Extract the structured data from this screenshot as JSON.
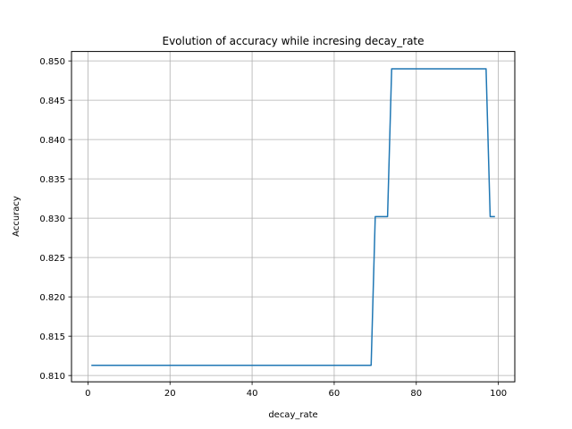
{
  "chart_data": {
    "type": "line",
    "title": "Evolution of accuracy while incresing decay_rate",
    "xlabel": "decay_rate",
    "ylabel": "Accuracy",
    "xlim": [
      -4,
      104
    ],
    "ylim": [
      0.8092,
      0.8512
    ],
    "xticks": [
      0,
      20,
      40,
      60,
      80,
      100
    ],
    "xtick_labels": [
      "0",
      "20",
      "40",
      "60",
      "80",
      "100"
    ],
    "yticks": [
      0.81,
      0.815,
      0.82,
      0.825,
      0.83,
      0.835,
      0.84,
      0.845,
      0.85
    ],
    "ytick_labels": [
      "0.810",
      "0.815",
      "0.820",
      "0.825",
      "0.830",
      "0.835",
      "0.840",
      "0.845",
      "0.850"
    ],
    "grid": true,
    "series_color": "#1f77b4",
    "series": [
      {
        "x": [
          1,
          69,
          70,
          73,
          74,
          97,
          98,
          99
        ],
        "y": [
          0.8113,
          0.8113,
          0.8302,
          0.8302,
          0.849,
          0.849,
          0.8302,
          0.8302
        ]
      }
    ]
  }
}
